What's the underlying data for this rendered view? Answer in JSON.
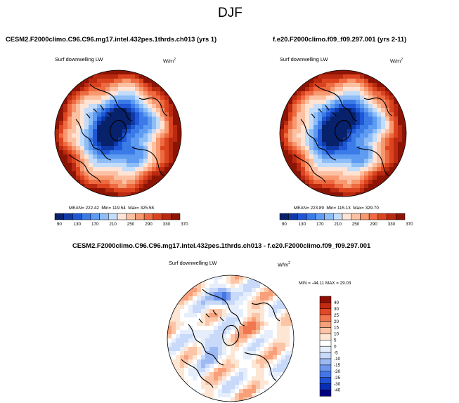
{
  "figure": {
    "title": "DJF",
    "units_label": "W/m",
    "units_exp": "2",
    "variable": "Surf downwelling LW"
  },
  "chart_data": [
    {
      "type": "heatmap",
      "projection": "north polar stereographic",
      "title": "CESM2.F2000climo.C96.C96.mg17.intel.432pes.1thrds.ch013 (yrs 1)",
      "field": "Surf downwelling LW",
      "units": "W/m2",
      "stats": {
        "mean_text": "MEAN= 222.42",
        "min_text": "Min= 119.54",
        "max_text": "Max= 325.58",
        "mean": 222.42,
        "min": 119.54,
        "max": 325.58
      },
      "colorbar": {
        "orientation": "horizontal",
        "levels": [
          90,
          110,
          130,
          150,
          170,
          190,
          210,
          230,
          250,
          270,
          290,
          310,
          330,
          350,
          370
        ],
        "tick_labels": [
          "90",
          "130",
          "170",
          "210",
          "250",
          "290",
          "330",
          "370"
        ]
      }
    },
    {
      "type": "heatmap",
      "projection": "north polar stereographic",
      "title": "f.e20.F2000climo.f09_f09.297.001 (yrs 2-11)",
      "field": "Surf downwelling LW",
      "units": "W/m2",
      "stats": {
        "mean_text": "MEAN= 223.89",
        "min_text": "Min= 115.13",
        "max_text": "Max= 329.70",
        "mean": 223.89,
        "min": 115.13,
        "max": 329.7
      },
      "colorbar": {
        "orientation": "horizontal",
        "levels": [
          90,
          110,
          130,
          150,
          170,
          190,
          210,
          230,
          250,
          270,
          290,
          310,
          330,
          350,
          370
        ],
        "tick_labels": [
          "90",
          "130",
          "170",
          "210",
          "250",
          "290",
          "330",
          "370"
        ]
      }
    },
    {
      "type": "heatmap",
      "projection": "north polar stereographic",
      "title": "CESM2.F2000climo.C96.C96.mg17.intel.432pes.1thrds.ch013 - f.e20.F2000climo.f09_f09.297.001",
      "field": "Surf downwelling LW",
      "units": "W/m2",
      "stats": {
        "minmax_text": "MIN = -44.11  MAX =  29.03",
        "min": -44.11,
        "max": 29.03
      },
      "colorbar": {
        "orientation": "vertical",
        "tick_labels": [
          "40",
          "30",
          "25",
          "20",
          "15",
          "10",
          "5",
          "0",
          "-5",
          "-10",
          "-15",
          "-20",
          "-25",
          "-30",
          "-40"
        ]
      }
    }
  ],
  "palettes": {
    "abs_colors": [
      "#08216b",
      "#0e3aa8",
      "#1f57d6",
      "#3b7be8",
      "#5e9cf2",
      "#8fbdf7",
      "#c2dcfa",
      "#ffe4d6",
      "#fcc1a3",
      "#f7986f",
      "#ee6a40",
      "#dc4420",
      "#b92a10",
      "#8c1405"
    ],
    "diff_colors": [
      "#000080",
      "#0a2db5",
      "#1f50d6",
      "#4576e6",
      "#6f97ee",
      "#9dbaf4",
      "#c8d9f9",
      "#e6eefc",
      "#ffffff",
      "#fde6d4",
      "#fcc5a7",
      "#f8a07a",
      "#f17750",
      "#e04a28",
      "#c42a12",
      "#8e1004"
    ]
  }
}
